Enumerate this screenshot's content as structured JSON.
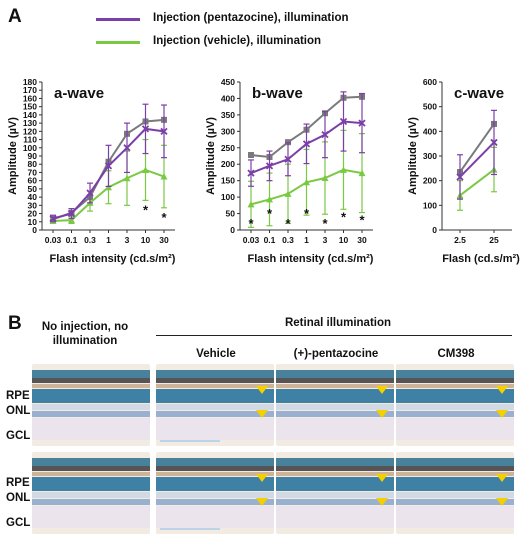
{
  "panel_a": {
    "letter": "A",
    "legend": [
      {
        "label": "Injection (pentazocine), illumination",
        "color": "#7b3fa8"
      },
      {
        "label": "Injection (vehicle), illumination",
        "color": "#7ac943"
      }
    ],
    "extra_series_color": "#7a7a7a"
  },
  "chart_data": [
    {
      "type": "line",
      "title": "a-wave",
      "xlabel": "Flash intensity (cd.s/m²)",
      "ylabel": "Amplitude (µV)",
      "categories": [
        "0.03",
        "0.1",
        "0.3",
        "1",
        "3",
        "10",
        "30"
      ],
      "ylim": [
        0,
        180
      ],
      "yticks": [
        "0",
        "10",
        "20",
        "30",
        "40",
        "50",
        "60",
        "70",
        "80",
        "90",
        "100",
        "110",
        "120",
        "130",
        "140",
        "150",
        "160",
        "170",
        "180"
      ],
      "series": [
        {
          "name": "Injection (pentazocine), illumination",
          "color": "#7b3fa8",
          "marker": "x",
          "values": [
            14,
            20,
            45,
            78,
            100,
            123,
            120
          ],
          "err": [
            4,
            6,
            12,
            25,
            30,
            30,
            32
          ]
        },
        {
          "name": "Injection (vehicle), illumination",
          "color": "#7ac943",
          "marker": "triangle",
          "values": [
            11,
            12,
            33,
            52,
            63,
            73,
            65
          ],
          "err": [
            3,
            4,
            10,
            20,
            33,
            37,
            38
          ]
        },
        {
          "color": "#7a7a7a",
          "marker": "square",
          "values": [
            13,
            21,
            40,
            83,
            117,
            132,
            134
          ],
          "err": [
            0,
            0,
            0,
            0,
            0,
            0,
            0
          ]
        }
      ],
      "significance": [
        "",
        "",
        "",
        "",
        "",
        "*",
        "*"
      ]
    },
    {
      "type": "line",
      "title": "b-wave",
      "xlabel": "Flash intensity (cd.s/m²)",
      "ylabel": "Amplitude (µV)",
      "categories": [
        "0.03",
        "0.1",
        "0.3",
        "1",
        "3",
        "10",
        "30"
      ],
      "ylim": [
        0,
        450
      ],
      "yticks": [
        "0",
        "50",
        "100",
        "150",
        "200",
        "250",
        "300",
        "350",
        "400",
        "450"
      ],
      "series": [
        {
          "name": "Injection (pentazocine), illumination",
          "color": "#7b3fa8",
          "marker": "x",
          "values": [
            173,
            195,
            215,
            262,
            290,
            330,
            325
          ],
          "err": [
            40,
            45,
            50,
            60,
            70,
            90,
            90
          ]
        },
        {
          "name": "Injection (vehicle), illumination",
          "color": "#7ac943",
          "marker": "triangle",
          "values": [
            78,
            93,
            110,
            145,
            158,
            183,
            173
          ],
          "err": [
            70,
            80,
            90,
            100,
            110,
            120,
            120
          ]
        },
        {
          "color": "#7a7a7a",
          "marker": "square",
          "values": [
            228,
            222,
            267,
            305,
            355,
            402,
            405
          ],
          "err": [
            0,
            0,
            0,
            0,
            0,
            0,
            0
          ]
        }
      ],
      "significance": [
        "*",
        "*",
        "*",
        "*",
        "*",
        "*",
        "*"
      ]
    },
    {
      "type": "line",
      "title": "c-wave",
      "xlabel": "Flash (cd.s/m²)",
      "ylabel": "Amplitude (µV)",
      "categories": [
        "2.5",
        "25"
      ],
      "ylim": [
        0,
        600
      ],
      "yticks": [
        "0",
        "100",
        "200",
        "300",
        "400",
        "500",
        "600"
      ],
      "series": [
        {
          "name": "Injection (pentazocine), illumination",
          "color": "#7b3fa8",
          "marker": "x",
          "values": [
            215,
            355
          ],
          "err": [
            90,
            130
          ]
        },
        {
          "name": "Injection (vehicle), illumination",
          "color": "#7ac943",
          "marker": "triangle",
          "values": [
            140,
            245
          ],
          "err": [
            60,
            90
          ]
        },
        {
          "color": "#7a7a7a",
          "marker": "square",
          "values": [
            235,
            430
          ],
          "err": [
            0,
            0
          ]
        }
      ],
      "significance": [
        "",
        ""
      ]
    }
  ],
  "panel_b": {
    "letter": "B",
    "header_left": "No injection, no illumination",
    "header_group": "Retinal illumination",
    "columns": [
      "Vehicle",
      "(+)-pentazocine",
      "CM398"
    ],
    "row_labels": [
      [
        "RPE",
        "ONL",
        "GCL"
      ],
      [
        "RPE",
        "ONL",
        "GCL"
      ]
    ]
  }
}
